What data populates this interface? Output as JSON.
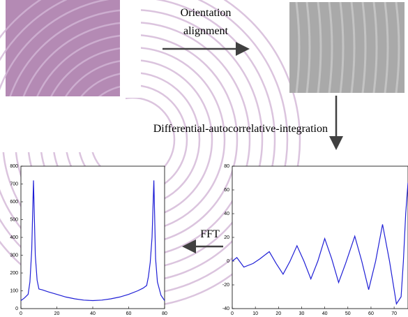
{
  "labels": {
    "step1_line1": "Orientation",
    "step1_line2": "alignment",
    "step2": "Differential-autocorrelative-integration",
    "step3": "FFT"
  },
  "chart_data": [
    {
      "type": "line",
      "color": "#1f1fd6",
      "x": [
        0,
        2,
        4,
        5,
        6,
        7,
        8,
        9,
        10,
        12,
        15,
        20,
        25,
        30,
        35,
        40,
        45,
        50,
        55,
        60,
        65,
        68,
        70,
        71,
        72,
        73,
        74,
        75,
        76,
        78,
        80
      ],
      "values": [
        45,
        60,
        80,
        150,
        330,
        720,
        300,
        160,
        110,
        105,
        95,
        80,
        65,
        55,
        48,
        45,
        48,
        55,
        65,
        80,
        100,
        115,
        130,
        180,
        260,
        400,
        720,
        280,
        150,
        75,
        45
      ],
      "xlim": [
        0,
        80
      ],
      "ylim": [
        0,
        800
      ],
      "xticks": [
        0,
        20,
        40,
        60,
        80
      ],
      "yticks": [
        0,
        100,
        200,
        300,
        400,
        500,
        600,
        700,
        800
      ]
    },
    {
      "type": "line",
      "color": "#1f1fd6",
      "x": [
        0,
        2,
        5,
        9,
        12,
        16,
        19,
        22,
        25,
        28,
        31,
        34,
        37,
        40,
        43,
        46,
        49,
        53,
        56,
        59,
        62,
        65,
        68,
        71,
        73,
        74,
        75,
        76
      ],
      "values": [
        0,
        3,
        -5,
        -2,
        2,
        8,
        -2,
        -11,
        0,
        13,
        0,
        -15,
        0,
        19,
        2,
        -18,
        -2,
        21,
        0,
        -24,
        0,
        31,
        0,
        -36,
        -30,
        0,
        40,
        66
      ],
      "xlim": [
        0,
        76
      ],
      "ylim": [
        -40,
        80
      ],
      "xticks": [
        0,
        10,
        20,
        30,
        40,
        50,
        60,
        70
      ],
      "yticks": [
        -40,
        -20,
        0,
        20,
        40,
        60,
        80
      ]
    }
  ]
}
